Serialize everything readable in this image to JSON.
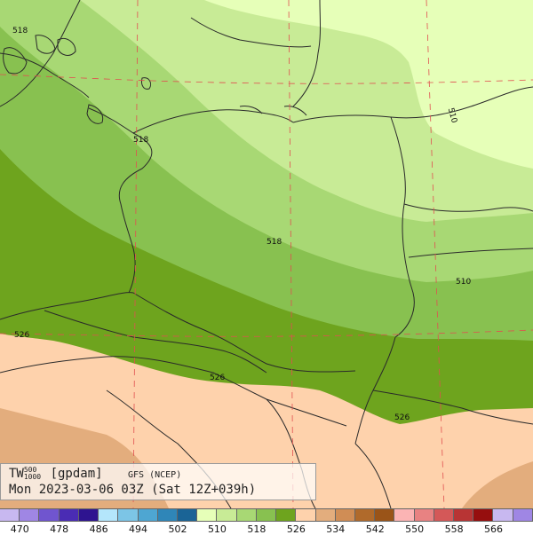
{
  "caption": {
    "var": "TW",
    "sup": "500",
    "sub": "1000",
    "unit": "[gpdam]",
    "model": "GFS (NCEP)",
    "valid": "Mon 2023-03-06 03Z (Sat 12Z+039h)"
  },
  "contour_labels": [
    {
      "text": "518"
    },
    {
      "text": "518"
    },
    {
      "text": "518"
    },
    {
      "text": "510"
    },
    {
      "text": "510"
    },
    {
      "text": "526"
    },
    {
      "text": "526"
    },
    {
      "text": "526"
    }
  ],
  "legend": {
    "colors": [
      "#c8b8f0",
      "#9f86e4",
      "#7055cf",
      "#4a2cb4",
      "#2e1490",
      "#b4e6fb",
      "#7cc5e6",
      "#4ea6d2",
      "#2f86b8",
      "#1a6496",
      "#e6ffb8",
      "#c8eb96",
      "#a8d874",
      "#88c150",
      "#6ea41e",
      "#fed2ac",
      "#e3ad7d",
      "#d08d55",
      "#b06a2b",
      "#9a5418",
      "#fbb4b4",
      "#e88282",
      "#d45858",
      "#b83434",
      "#960e0e",
      "#c8b8f0",
      "#9f86e4"
    ],
    "labels": [
      "470",
      "478",
      "486",
      "494",
      "502",
      "510",
      "518",
      "526",
      "534",
      "542",
      "550",
      "558",
      "566"
    ]
  }
}
